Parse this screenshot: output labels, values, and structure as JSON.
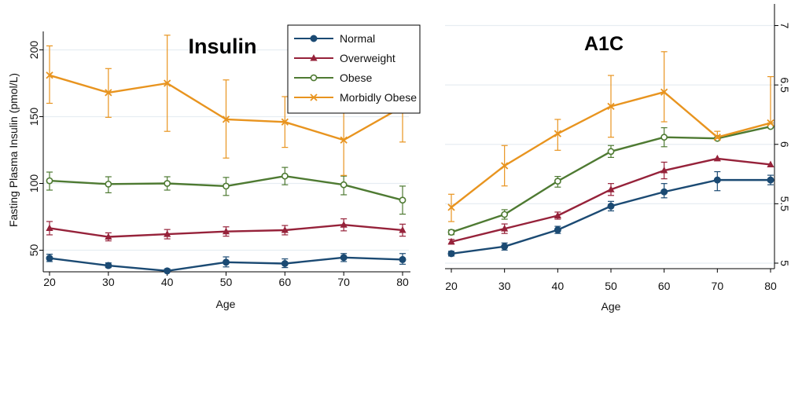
{
  "chart_data": [
    {
      "type": "line",
      "title": "Insulin",
      "xlabel": "Age",
      "ylabel": "Fasting Plasma Insulin (pmol/L)",
      "x": [
        20,
        30,
        40,
        50,
        60,
        70,
        80
      ],
      "xlim": [
        20,
        80
      ],
      "ylim": [
        35,
        215
      ],
      "y_ticks": [
        "50",
        "100",
        "150",
        "200"
      ],
      "y_tick_values": [
        50,
        100,
        150,
        200
      ],
      "x_ticks": [
        "20",
        "30",
        "40",
        "50",
        "60",
        "70",
        "80"
      ],
      "grid": true,
      "legend": "top-right",
      "series": [
        {
          "name": "Normal",
          "color": "#1b4a73",
          "marker": "filled-circle",
          "values": [
            44,
            38.5,
            34.5,
            41,
            40,
            44.5,
            43
          ],
          "error_low": [
            41.5,
            37,
            34,
            37.5,
            37,
            41.5,
            39.5
          ],
          "error_high": [
            47,
            40.5,
            36,
            45,
            43.5,
            47.5,
            47.5
          ]
        },
        {
          "name": "Overweight",
          "color": "#96223a",
          "marker": "filled-triangle",
          "values": [
            66.5,
            60,
            62,
            64,
            65,
            69,
            65
          ],
          "error_low": [
            61.5,
            57,
            58.5,
            60.5,
            61.5,
            64.5,
            60.5
          ],
          "error_high": [
            71.5,
            63,
            65.5,
            67.5,
            68.5,
            73.5,
            69.5
          ]
        },
        {
          "name": "Obese",
          "color": "#4e7a32",
          "marker": "hollow-circle",
          "values": [
            102,
            99.5,
            100,
            98,
            105.5,
            99,
            87.5
          ],
          "error_low": [
            95,
            93,
            95,
            91,
            99,
            91.5,
            77
          ],
          "error_high": [
            108.5,
            105,
            105,
            104.5,
            112,
            105.5,
            98
          ]
        },
        {
          "name": "Morbidly Obese",
          "color": "#e8941f",
          "marker": "x",
          "values": [
            181,
            168,
            175,
            148,
            146,
            132.5,
            157.5
          ],
          "error_low": [
            160,
            149.5,
            139,
            119,
            127,
            106,
            131
          ],
          "error_high": [
            203,
            186,
            211,
            177.5,
            165,
            158.5,
            170
          ]
        }
      ]
    },
    {
      "type": "line",
      "title": "A1C",
      "xlabel": "Age",
      "ylabel": "",
      "x": [
        20,
        30,
        40,
        50,
        60,
        70,
        80
      ],
      "xlim": [
        20,
        80
      ],
      "ylim": [
        4.98,
        7.03
      ],
      "y_ticks": [
        "5",
        "5.5",
        "6",
        "6.5",
        "7"
      ],
      "y_tick_values": [
        5,
        5.5,
        6,
        6.5,
        7
      ],
      "y_axis_side": "right",
      "x_ticks": [
        "20",
        "30",
        "40",
        "50",
        "60",
        "70",
        "80"
      ],
      "grid": true,
      "series": [
        {
          "name": "Normal",
          "color": "#1b4a73",
          "marker": "filled-circle",
          "values": [
            5.08,
            5.14,
            5.28,
            5.48,
            5.6,
            5.7,
            5.7
          ],
          "error_low": [
            5.06,
            5.11,
            5.25,
            5.44,
            5.55,
            5.61,
            5.66
          ],
          "error_high": [
            5.1,
            5.17,
            5.31,
            5.52,
            5.67,
            5.77,
            5.74
          ]
        },
        {
          "name": "Overweight",
          "color": "#96223a",
          "marker": "filled-triangle",
          "values": [
            5.18,
            5.29,
            5.4,
            5.62,
            5.78,
            5.88,
            5.83
          ],
          "error_low": [
            5.16,
            5.25,
            5.37,
            5.57,
            5.71,
            5.88,
            5.83
          ],
          "error_high": [
            5.2,
            5.33,
            5.43,
            5.67,
            5.85,
            5.88,
            5.83
          ]
        },
        {
          "name": "Obese",
          "color": "#4e7a32",
          "marker": "hollow-circle",
          "values": [
            5.26,
            5.41,
            5.69,
            5.94,
            6.06,
            6.05,
            6.15
          ],
          "error_low": [
            5.24,
            5.37,
            5.64,
            5.89,
            5.98,
            6.05,
            6.15
          ],
          "error_high": [
            5.28,
            5.45,
            5.73,
            5.99,
            6.14,
            6.05,
            6.15
          ]
        },
        {
          "name": "Morbidly Obese",
          "color": "#e8941f",
          "marker": "x",
          "values": [
            5.47,
            5.82,
            6.09,
            6.32,
            6.44,
            6.06,
            6.18
          ],
          "error_low": [
            5.35,
            5.65,
            5.95,
            6.06,
            6.19,
            6.05,
            6.18
          ],
          "error_high": [
            5.58,
            5.99,
            6.21,
            6.58,
            6.78,
            6.11,
            6.57
          ]
        }
      ]
    }
  ]
}
